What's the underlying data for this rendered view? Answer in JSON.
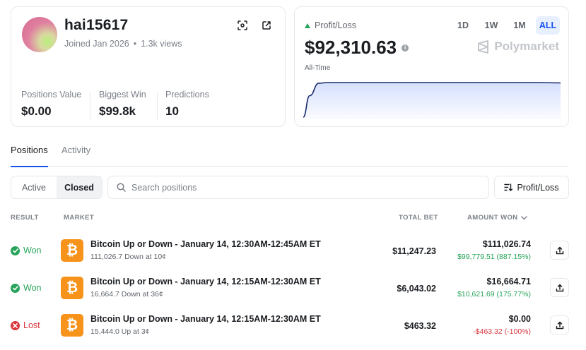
{
  "profile": {
    "username": "hai15617",
    "joined": "Joined Jan 2026",
    "separator": "•",
    "views": "1.3k views",
    "stats": [
      {
        "label": "Positions Value",
        "value": "$0.00"
      },
      {
        "label": "Biggest Win",
        "value": "$99.8k"
      },
      {
        "label": "Predictions",
        "value": "10"
      }
    ],
    "icons": {
      "scan": "scan-icon",
      "external": "external-link-icon"
    }
  },
  "pnl": {
    "label": "Profit/Loss",
    "value": "$92,310.63",
    "info_glyph": "i",
    "period": "All-Time",
    "ranges": [
      {
        "label": "1D",
        "active": false
      },
      {
        "label": "1W",
        "active": false
      },
      {
        "label": "1M",
        "active": false
      },
      {
        "label": "ALL",
        "active": true
      }
    ],
    "brand": "Polymarket",
    "accent_color": "#1652f0",
    "positive_color": "#27a35a",
    "chart_shape": [
      0.0,
      0.62,
      0.98,
      1.0,
      1.0,
      1.0,
      1.0,
      1.0,
      1.0,
      1.0,
      1.0,
      1.0,
      1.0,
      0.99
    ]
  },
  "tabs": [
    {
      "label": "Positions",
      "active": true
    },
    {
      "label": "Activity",
      "active": false
    }
  ],
  "filters": {
    "segments": [
      {
        "label": "Active",
        "active": false
      },
      {
        "label": "Closed",
        "active": true
      }
    ],
    "search_placeholder": "Search positions",
    "sort_label": "Profit/Loss"
  },
  "table": {
    "headers": {
      "result": "RESULT",
      "market": "MARKET",
      "total_bet": "TOTAL BET",
      "amount_won": "AMOUNT WON"
    },
    "rows": [
      {
        "result": "Won",
        "status": "won",
        "title": "Bitcoin Up or Down - January 14, 12:30AM-12:45AM ET",
        "subtitle": "111,026.7 Down at 10¢",
        "total_bet": "$11,247.23",
        "amount": "$111,026.74",
        "delta": "$99,779.51 (887.15%)",
        "delta_sign": "pos"
      },
      {
        "result": "Won",
        "status": "won",
        "title": "Bitcoin Up or Down - January 14, 12:15AM-12:30AM ET",
        "subtitle": "16,664.7 Down at 36¢",
        "total_bet": "$6,043.02",
        "amount": "$16,664.71",
        "delta": "$10,621.69 (175.77%)",
        "delta_sign": "pos"
      },
      {
        "result": "Lost",
        "status": "lost",
        "title": "Bitcoin Up or Down - January 14, 12:15AM-12:30AM ET",
        "subtitle": "15,444.0 Up at 3¢",
        "total_bet": "$463.32",
        "amount": "$0.00",
        "delta": "-$463.32 (-100%)",
        "delta_sign": "neg"
      }
    ]
  }
}
